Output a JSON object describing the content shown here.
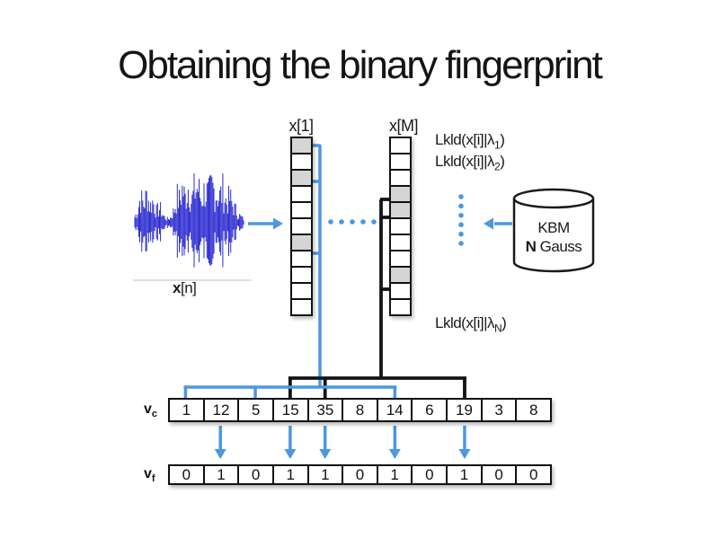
{
  "slide": {
    "title": "Obtaining the binary fingerprint"
  },
  "colors": {
    "accent_blue": "#4d97e2",
    "waveform_blue": "#2b2bd0",
    "cell_gray": "#d3d6d3",
    "line_black": "#141414"
  },
  "waveform": {
    "label": {
      "bold": "x",
      "rest": "[n]"
    }
  },
  "frames": {
    "x1": {
      "label": "x[1]",
      "num_cells": 11,
      "shaded_cells": [
        1,
        3,
        7
      ]
    },
    "xM": {
      "label": "x[M]",
      "num_cells": 11,
      "shaded_cells": [
        4,
        5,
        9
      ]
    }
  },
  "likelihoods": {
    "line1": {
      "pre": "Lkld(x[i]|λ",
      "sub": "1",
      "post": ")"
    },
    "line2": {
      "pre": "Lkld(x[i]|λ",
      "sub": "2",
      "post": ")"
    },
    "lineN": {
      "pre": "Lkld(x[i]|λ",
      "sub": "N",
      "post": ")"
    }
  },
  "kbm": {
    "line1": "KBM",
    "line2_bold": "N",
    "line2_rest": " Gauss"
  },
  "vectors": {
    "vc": {
      "label": {
        "main": "v",
        "sub": "c"
      },
      "values": [
        "1",
        "12",
        "5",
        "15",
        "35",
        "8",
        "14",
        "6",
        "19",
        "3",
        "8"
      ]
    },
    "vf": {
      "label": {
        "main": "v",
        "sub": "f"
      },
      "values": [
        "0",
        "1",
        "0",
        "1",
        "1",
        "0",
        "1",
        "0",
        "1",
        "0",
        "0"
      ]
    },
    "blue_link_cells": [
      1,
      3,
      7
    ],
    "black_link_cells": [
      4,
      5,
      9
    ],
    "threshold_arrow_cells": [
      2,
      4,
      5,
      7,
      9
    ]
  }
}
